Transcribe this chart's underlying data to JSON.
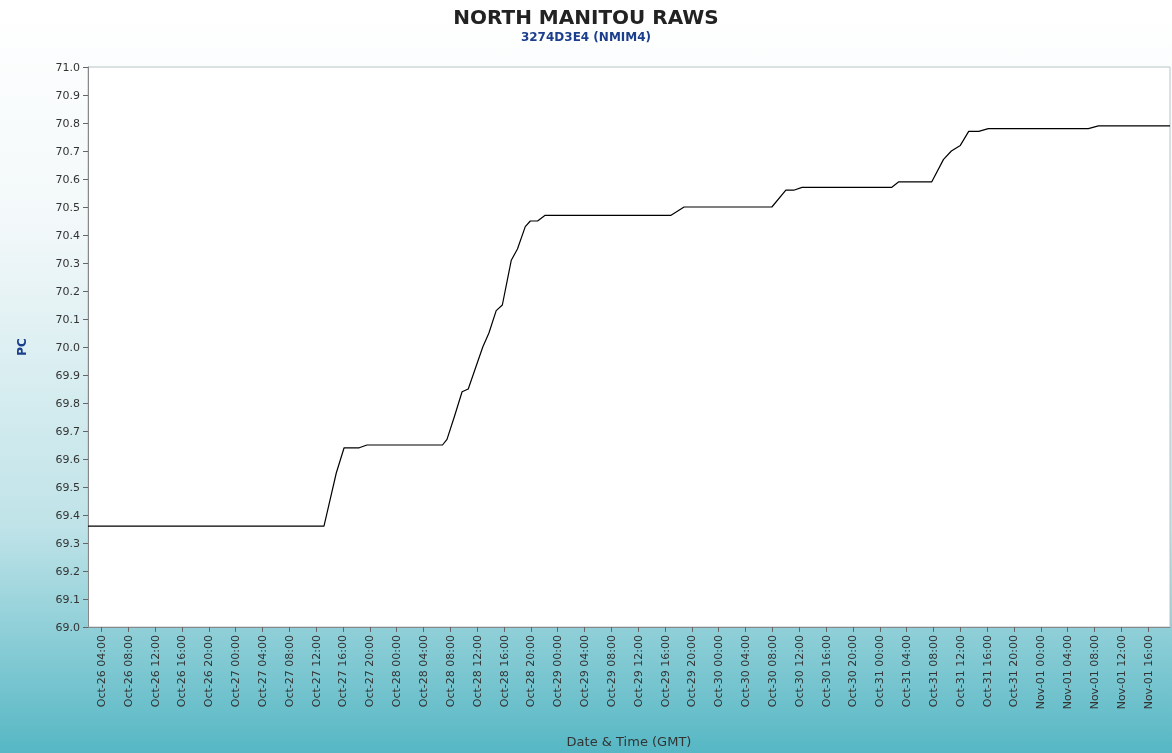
{
  "chart_data": {
    "type": "line",
    "title": "NORTH MANITOU RAWS",
    "subtitle": "3274D3E4 (NMIM4)",
    "xlabel": "Date & Time (GMT)",
    "ylabel": "PC",
    "x": [
      "--10-26T02:00",
      "--10-27T13:10",
      "--10-27T15:00",
      "--10-27T16:10",
      "--10-27T18:25",
      "--10-27T19:35",
      "--10-28T06:50",
      "--10-28T07:30",
      "--10-28T08:35",
      "--10-28T09:45",
      "--10-28T10:40",
      "--10-28T12:50",
      "--10-28T13:45",
      "--10-28T14:50",
      "--10-28T15:45",
      "--10-28T17:05",
      "--10-28T18:00",
      "--10-28T19:10",
      "--10-28T19:55",
      "--10-28T21:00",
      "--10-28T22:05",
      "--10-29T16:50",
      "--10-29T18:50",
      "--10-30T07:55",
      "--10-30T10:00",
      "--10-30T11:10",
      "--10-30T12:25",
      "--10-31T01:45",
      "--10-31T02:50",
      "--10-31T07:45",
      "--10-31T09:30",
      "--10-31T10:40",
      "--10-31T12:00",
      "--10-31T13:15",
      "--10-31T14:45",
      "--10-31T16:10",
      "--11-01T07:05",
      "--11-01T08:35",
      "--11-01T19:15"
    ],
    "series": [
      {
        "color": "#000000",
        "values": [
          69.36,
          69.36,
          69.55,
          69.64,
          69.64,
          69.65,
          69.65,
          69.67,
          69.75,
          69.84,
          69.85,
          70.0,
          70.05,
          70.13,
          70.15,
          70.31,
          70.35,
          70.43,
          70.45,
          70.45,
          70.47,
          70.47,
          70.5,
          70.5,
          70.56,
          70.56,
          70.57,
          70.57,
          70.59,
          70.59,
          70.67,
          70.7,
          70.72,
          70.77,
          70.77,
          70.78,
          70.78,
          70.79,
          70.79
        ]
      }
    ],
    "xlim": [
      "--10-26T02:00",
      "--11-01T19:15"
    ],
    "xticks": [
      {
        "value": "--10-26T04:00",
        "label": "Oct-26 04:00"
      },
      {
        "value": "--10-26T08:00",
        "label": "Oct-26 08:00"
      },
      {
        "value": "--10-26T12:00",
        "label": "Oct-26 12:00"
      },
      {
        "value": "--10-26T16:00",
        "label": "Oct-26 16:00"
      },
      {
        "value": "--10-26T20:00",
        "label": "Oct-26 20:00"
      },
      {
        "value": "--10-27T00:00",
        "label": "Oct-27 00:00"
      },
      {
        "value": "--10-27T04:00",
        "label": "Oct-27 04:00"
      },
      {
        "value": "--10-27T08:00",
        "label": "Oct-27 08:00"
      },
      {
        "value": "--10-27T12:00",
        "label": "Oct-27 12:00"
      },
      {
        "value": "--10-27T16:00",
        "label": "Oct-27 16:00"
      },
      {
        "value": "--10-27T20:00",
        "label": "Oct-27 20:00"
      },
      {
        "value": "--10-28T00:00",
        "label": "Oct-28 00:00"
      },
      {
        "value": "--10-28T04:00",
        "label": "Oct-28 04:00"
      },
      {
        "value": "--10-28T08:00",
        "label": "Oct-28 08:00"
      },
      {
        "value": "--10-28T12:00",
        "label": "Oct-28 12:00"
      },
      {
        "value": "--10-28T16:00",
        "label": "Oct-28 16:00"
      },
      {
        "value": "--10-28T20:00",
        "label": "Oct-28 20:00"
      },
      {
        "value": "--10-29T00:00",
        "label": "Oct-29 00:00"
      },
      {
        "value": "--10-29T04:00",
        "label": "Oct-29 04:00"
      },
      {
        "value": "--10-29T08:00",
        "label": "Oct-29 08:00"
      },
      {
        "value": "--10-29T12:00",
        "label": "Oct-29 12:00"
      },
      {
        "value": "--10-29T16:00",
        "label": "Oct-29 16:00"
      },
      {
        "value": "--10-29T20:00",
        "label": "Oct-29 20:00"
      },
      {
        "value": "--10-30T00:00",
        "label": "Oct-30 00:00"
      },
      {
        "value": "--10-30T04:00",
        "label": "Oct-30 04:00"
      },
      {
        "value": "--10-30T08:00",
        "label": "Oct-30 08:00"
      },
      {
        "value": "--10-30T12:00",
        "label": "Oct-30 12:00"
      },
      {
        "value": "--10-30T16:00",
        "label": "Oct-30 16:00"
      },
      {
        "value": "--10-30T20:00",
        "label": "Oct-30 20:00"
      },
      {
        "value": "--10-31T00:00",
        "label": "Oct-31 00:00"
      },
      {
        "value": "--10-31T04:00",
        "label": "Oct-31 04:00"
      },
      {
        "value": "--10-31T08:00",
        "label": "Oct-31 08:00"
      },
      {
        "value": "--10-31T12:00",
        "label": "Oct-31 12:00"
      },
      {
        "value": "--10-31T16:00",
        "label": "Oct-31 16:00"
      },
      {
        "value": "--10-31T20:00",
        "label": "Oct-31 20:00"
      },
      {
        "value": "--11-01T00:00",
        "label": "Nov-01 00:00"
      },
      {
        "value": "--11-01T04:00",
        "label": "Nov-01 04:00"
      },
      {
        "value": "--11-01T08:00",
        "label": "Nov-01 08:00"
      },
      {
        "value": "--11-01T12:00",
        "label": "Nov-01 12:00"
      },
      {
        "value": "--11-01T16:00",
        "label": "Nov-01 16:00"
      }
    ],
    "ylim": [
      69.0,
      71.0
    ],
    "yticks": [
      {
        "value": 69,
        "label": "69.0"
      },
      69.1,
      69.2,
      69.3,
      69.4,
      69.5,
      69.6,
      69.7,
      69.8,
      69.9,
      {
        "value": 70,
        "label": "70.0"
      },
      70.1,
      70.2,
      70.3,
      70.4,
      70.5,
      70.6,
      70.7,
      70.8,
      70.9,
      {
        "value": 71,
        "label": "71.0"
      }
    ],
    "grid": false,
    "marker": "none",
    "line_style": "solid"
  }
}
